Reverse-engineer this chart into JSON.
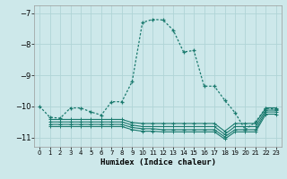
{
  "xlabel": "Humidex (Indice chaleur)",
  "ylabel": "",
  "bg_color": "#cde8ea",
  "grid_color": "#b0d4d6",
  "line_color": "#1a7a6e",
  "xlim": [
    -0.5,
    23.5
  ],
  "ylim": [
    -11.3,
    -6.75
  ],
  "yticks": [
    -11,
    -10,
    -9,
    -8,
    -7
  ],
  "xticks": [
    0,
    1,
    2,
    3,
    4,
    5,
    6,
    7,
    8,
    9,
    10,
    11,
    12,
    13,
    14,
    15,
    16,
    17,
    18,
    19,
    20,
    21,
    22,
    23
  ],
  "main_line": {
    "x": [
      0,
      1,
      2,
      3,
      4,
      5,
      6,
      7,
      8,
      9,
      10,
      11,
      12,
      13,
      14,
      15,
      16,
      17,
      18,
      19,
      20,
      21,
      22,
      23
    ],
    "y": [
      -10.0,
      -10.35,
      -10.38,
      -10.05,
      -10.05,
      -10.18,
      -10.28,
      -9.85,
      -9.85,
      -9.2,
      -7.3,
      -7.2,
      -7.22,
      -7.55,
      -8.25,
      -8.2,
      -9.35,
      -9.35,
      -9.8,
      -10.2,
      -10.75,
      -10.5,
      -10.05,
      -10.1
    ]
  },
  "flat_lines": [
    {
      "x": [
        1,
        2,
        3,
        4,
        5,
        6,
        7,
        8,
        9,
        10,
        11,
        12,
        13,
        14,
        15,
        16,
        17,
        18,
        19,
        20,
        21,
        22,
        23
      ],
      "y": [
        -10.42,
        -10.42,
        -10.42,
        -10.42,
        -10.42,
        -10.42,
        -10.42,
        -10.42,
        -10.52,
        -10.55,
        -10.55,
        -10.55,
        -10.55,
        -10.55,
        -10.55,
        -10.55,
        -10.55,
        -10.8,
        -10.55,
        -10.55,
        -10.55,
        -10.05,
        -10.05
      ]
    },
    {
      "x": [
        1,
        2,
        3,
        4,
        5,
        6,
        7,
        8,
        9,
        10,
        11,
        12,
        13,
        14,
        15,
        16,
        17,
        18,
        19,
        20,
        21,
        22,
        23
      ],
      "y": [
        -10.5,
        -10.5,
        -10.5,
        -10.5,
        -10.5,
        -10.5,
        -10.5,
        -10.5,
        -10.6,
        -10.65,
        -10.65,
        -10.65,
        -10.65,
        -10.65,
        -10.65,
        -10.65,
        -10.65,
        -10.9,
        -10.65,
        -10.65,
        -10.65,
        -10.12,
        -10.12
      ]
    },
    {
      "x": [
        1,
        2,
        3,
        4,
        5,
        6,
        7,
        8,
        9,
        10,
        11,
        12,
        13,
        14,
        15,
        16,
        17,
        18,
        19,
        20,
        21,
        22,
        23
      ],
      "y": [
        -10.58,
        -10.58,
        -10.58,
        -10.58,
        -10.58,
        -10.58,
        -10.58,
        -10.58,
        -10.68,
        -10.72,
        -10.72,
        -10.75,
        -10.75,
        -10.75,
        -10.75,
        -10.75,
        -10.75,
        -10.98,
        -10.75,
        -10.75,
        -10.75,
        -10.18,
        -10.18
      ]
    },
    {
      "x": [
        1,
        2,
        3,
        4,
        5,
        6,
        7,
        8,
        9,
        10,
        11,
        12,
        13,
        14,
        15,
        16,
        17,
        18,
        19,
        20,
        21,
        22,
        23
      ],
      "y": [
        -10.65,
        -10.65,
        -10.65,
        -10.65,
        -10.65,
        -10.65,
        -10.65,
        -10.65,
        -10.75,
        -10.8,
        -10.8,
        -10.82,
        -10.82,
        -10.82,
        -10.82,
        -10.82,
        -10.82,
        -11.05,
        -10.82,
        -10.82,
        -10.82,
        -10.25,
        -10.25
      ]
    }
  ]
}
